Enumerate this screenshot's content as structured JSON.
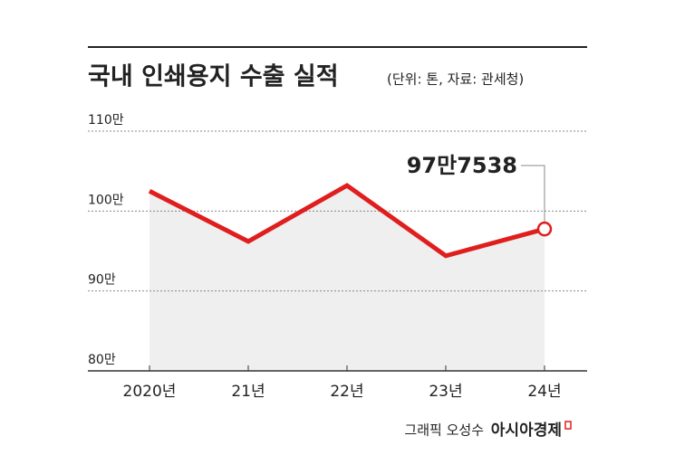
{
  "chart_data": {
    "type": "line",
    "title": "국내 인쇄용지 수출 실적",
    "subtitle": "(단위: 톤, 자료: 관세청)",
    "categories": [
      "2020년",
      "21년",
      "22년",
      "23년",
      "24년"
    ],
    "values": [
      1025000,
      962000,
      1032000,
      944000,
      977538
    ],
    "value_labels": [
      null,
      null,
      null,
      null,
      "97만7538"
    ],
    "color": "#e01e1e",
    "ylim": [
      800000,
      1100000
    ],
    "yticks": [
      {
        "value": 800000,
        "label": "80만"
      },
      {
        "value": 900000,
        "label": "90만"
      },
      {
        "value": 1000000,
        "label": "100만"
      },
      {
        "value": 1100000,
        "label": "110만"
      }
    ],
    "grid": true,
    "credit": "그래픽 오성수",
    "publisher": "아시아경제"
  }
}
